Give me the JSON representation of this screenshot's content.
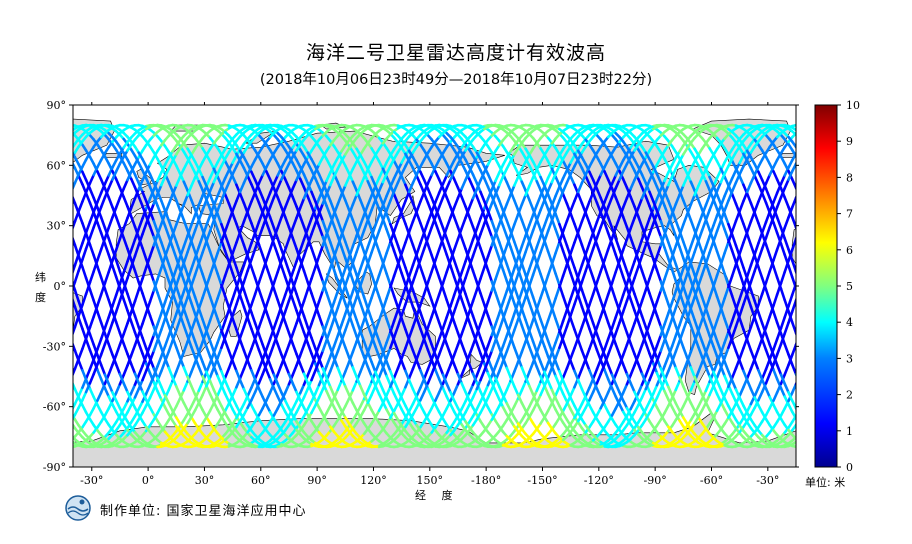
{
  "header": {
    "title": "海洋二号卫星雷达高度计有效波高",
    "subtitle": "(2018年10月06日23时49分—2018年10月07日23时22分)"
  },
  "map": {
    "lat_axis_label": "纬 度",
    "lon_axis_label": "经 度",
    "lat_ticks": [
      "90°",
      "60°",
      "30°",
      "0°",
      "-30°",
      "-60°",
      "-90°"
    ],
    "lon_ticks": [
      "-30°",
      "0°",
      "30°",
      "60°",
      "90°",
      "120°",
      "150°",
      "-180°",
      "-150°",
      "-120°",
      "-90°",
      "-60°",
      "-30°"
    ],
    "lon_tick_values": [
      -30,
      0,
      30,
      60,
      90,
      120,
      150,
      180,
      210,
      240,
      270,
      300,
      330
    ],
    "lat_tick_values": [
      90,
      60,
      30,
      0,
      -30,
      -60,
      -90
    ],
    "lon_range": [
      -40,
      345
    ],
    "lat_range": [
      -90,
      90
    ],
    "land_color": "#d9d9d9",
    "ocean_color": "#ffffff"
  },
  "colorbar": {
    "ticks": [
      "10",
      "9",
      "8",
      "7",
      "6",
      "5",
      "4",
      "3",
      "2",
      "1",
      "0"
    ],
    "range": [
      0,
      10
    ],
    "unit_label": "单位: 米",
    "colormap": [
      "#00008f",
      "#0000ff",
      "#0080ff",
      "#00ffff",
      "#80ff80",
      "#ffff00",
      "#ff8000",
      "#ff0000",
      "#800000"
    ]
  },
  "footer": {
    "producer": "制作单位: 国家卫星海洋应用中心"
  }
}
